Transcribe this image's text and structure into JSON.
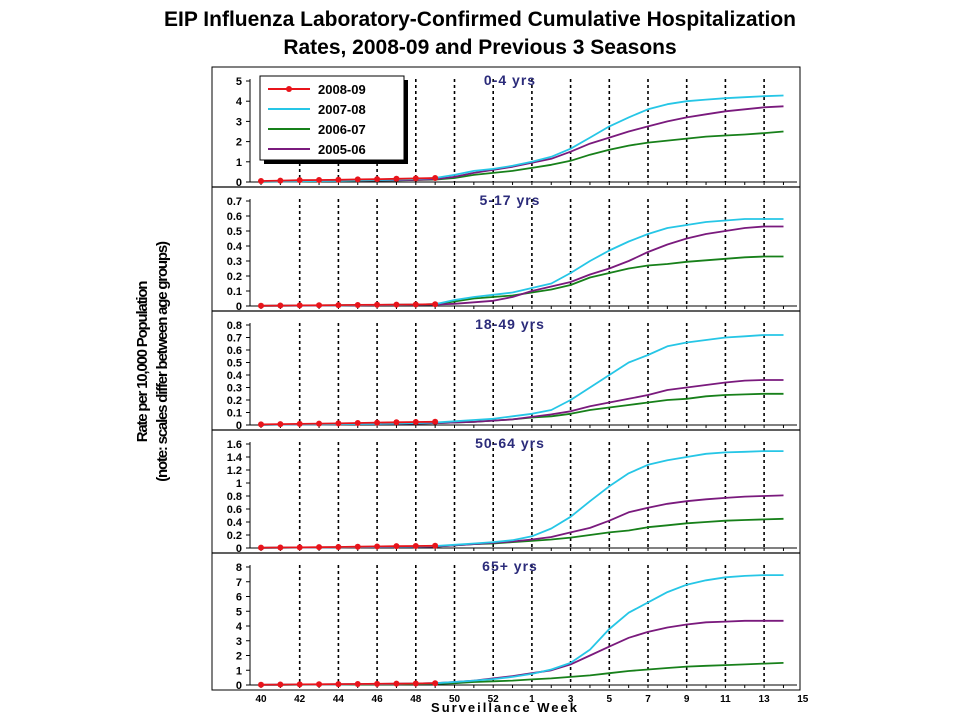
{
  "title_line1": "EIP Influenza Laboratory-Confirmed Cumulative Hospitalization",
  "title_line2": "Rates, 2008-09 and Previous 3 Seasons",
  "ylabel_line1": "Rate per 10,000 Population",
  "ylabel_line2": "(note: scales differ between age groups)",
  "xlabel": "Surveillance Week",
  "chart_data": {
    "type": "line",
    "x_ticks": [
      "40",
      "42",
      "44",
      "46",
      "48",
      "50",
      "52",
      "1",
      "3",
      "5",
      "7",
      "9",
      "11",
      "13",
      "15"
    ],
    "legend_position": "top-left of first panel",
    "series_styles": [
      {
        "name": "2008-09",
        "color": "#e8141b",
        "markers": true
      },
      {
        "name": "2007-08",
        "color": "#26c6e6",
        "markers": false
      },
      {
        "name": "2006-07",
        "color": "#17801a",
        "markers": false
      },
      {
        "name": "2005-06",
        "color": "#7a1a7d",
        "markers": false
      }
    ],
    "panels": [
      {
        "label": "0-4 yrs",
        "ylim": [
          0,
          5
        ],
        "yticks": [
          "0",
          "1",
          "2",
          "3",
          "4",
          "5"
        ],
        "series": [
          {
            "name": "2008-09",
            "values": [
              0.05,
              0.07,
              0.09,
              0.1,
              0.11,
              0.13,
              0.14,
              0.16,
              0.18,
              0.2
            ]
          },
          {
            "name": "2007-08",
            "values": [
              0.02,
              0.03,
              0.04,
              0.05,
              0.06,
              0.08,
              0.1,
              0.12,
              0.15,
              0.2,
              0.35,
              0.55,
              0.65,
              0.8,
              1.0,
              1.25,
              1.65,
              2.2,
              2.75,
              3.2,
              3.6,
              3.85,
              4.0,
              4.08,
              4.15,
              4.2,
              4.25,
              4.28
            ]
          },
          {
            "name": "2006-07",
            "values": [
              0.01,
              0.02,
              0.03,
              0.04,
              0.05,
              0.06,
              0.07,
              0.08,
              0.1,
              0.12,
              0.2,
              0.35,
              0.45,
              0.55,
              0.7,
              0.85,
              1.05,
              1.35,
              1.6,
              1.8,
              1.95,
              2.05,
              2.15,
              2.25,
              2.3,
              2.35,
              2.42,
              2.5
            ]
          },
          {
            "name": "2005-06",
            "values": [
              0.02,
              0.03,
              0.04,
              0.05,
              0.06,
              0.07,
              0.08,
              0.09,
              0.11,
              0.14,
              0.25,
              0.45,
              0.6,
              0.75,
              0.95,
              1.15,
              1.5,
              1.9,
              2.2,
              2.5,
              2.75,
              3.0,
              3.2,
              3.35,
              3.5,
              3.6,
              3.7,
              3.75
            ]
          }
        ]
      },
      {
        "label": "5-17 yrs",
        "ylim": [
          0,
          0.7
        ],
        "yticks": [
          "0",
          "0.1",
          "0.2",
          "0.3",
          "0.4",
          "0.5",
          "0.6",
          "0.7"
        ],
        "series": [
          {
            "name": "2008-09",
            "values": [
              0.002,
              0.003,
              0.004,
              0.005,
              0.006,
              0.007,
              0.008,
              0.009,
              0.01,
              0.012
            ]
          },
          {
            "name": "2007-08",
            "values": [
              0.001,
              0.002,
              0.003,
              0.004,
              0.005,
              0.006,
              0.007,
              0.008,
              0.009,
              0.012,
              0.04,
              0.06,
              0.075,
              0.09,
              0.12,
              0.15,
              0.22,
              0.3,
              0.37,
              0.43,
              0.48,
              0.52,
              0.54,
              0.56,
              0.57,
              0.58,
              0.58,
              0.58
            ]
          },
          {
            "name": "2006-07",
            "values": [
              0.001,
              0.002,
              0.003,
              0.004,
              0.005,
              0.006,
              0.007,
              0.008,
              0.009,
              0.012,
              0.03,
              0.05,
              0.06,
              0.07,
              0.09,
              0.11,
              0.14,
              0.19,
              0.22,
              0.25,
              0.27,
              0.28,
              0.295,
              0.305,
              0.315,
              0.325,
              0.33,
              0.33
            ]
          },
          {
            "name": "2005-06",
            "values": [
              0.001,
              0.002,
              0.002,
              0.003,
              0.004,
              0.005,
              0.006,
              0.007,
              0.008,
              0.01,
              0.015,
              0.025,
              0.035,
              0.06,
              0.1,
              0.13,
              0.16,
              0.21,
              0.25,
              0.3,
              0.36,
              0.41,
              0.45,
              0.48,
              0.5,
              0.52,
              0.53,
              0.53
            ]
          }
        ]
      },
      {
        "label": "18-49 yrs",
        "ylim": [
          0,
          0.8
        ],
        "yticks": [
          "0",
          "0.1",
          "0.2",
          "0.3",
          "0.4",
          "0.5",
          "0.6",
          "0.7",
          "0.8"
        ],
        "series": [
          {
            "name": "2008-09",
            "values": [
              0.005,
              0.007,
              0.009,
              0.011,
              0.013,
              0.016,
              0.019,
              0.022,
              0.024,
              0.026
            ]
          },
          {
            "name": "2007-08",
            "values": [
              0.003,
              0.004,
              0.005,
              0.006,
              0.007,
              0.008,
              0.01,
              0.012,
              0.015,
              0.02,
              0.03,
              0.04,
              0.05,
              0.07,
              0.09,
              0.12,
              0.2,
              0.3,
              0.4,
              0.5,
              0.56,
              0.63,
              0.66,
              0.68,
              0.7,
              0.71,
              0.72,
              0.72
            ]
          },
          {
            "name": "2006-07",
            "values": [
              0.002,
              0.003,
              0.004,
              0.005,
              0.006,
              0.007,
              0.008,
              0.01,
              0.012,
              0.015,
              0.02,
              0.025,
              0.035,
              0.045,
              0.06,
              0.07,
              0.09,
              0.12,
              0.14,
              0.16,
              0.18,
              0.2,
              0.21,
              0.23,
              0.24,
              0.245,
              0.25,
              0.25
            ]
          },
          {
            "name": "2005-06",
            "values": [
              0.002,
              0.003,
              0.004,
              0.005,
              0.006,
              0.007,
              0.008,
              0.01,
              0.012,
              0.015,
              0.02,
              0.025,
              0.035,
              0.045,
              0.065,
              0.085,
              0.11,
              0.15,
              0.18,
              0.21,
              0.24,
              0.28,
              0.3,
              0.32,
              0.34,
              0.355,
              0.36,
              0.36
            ]
          }
        ]
      },
      {
        "label": "50-64 yrs",
        "ylim": [
          0,
          1.6
        ],
        "yticks": [
          "0",
          "0.2",
          "0.4",
          "0.6",
          "0.8",
          "1",
          "1.2",
          "1.4",
          "1.6"
        ],
        "series": [
          {
            "name": "2008-09",
            "values": [
              0.005,
              0.007,
              0.01,
              0.013,
              0.016,
              0.02,
              0.024,
              0.028,
              0.031,
              0.034
            ]
          },
          {
            "name": "2007-08",
            "values": [
              0.003,
              0.005,
              0.007,
              0.01,
              0.013,
              0.016,
              0.019,
              0.022,
              0.026,
              0.03,
              0.05,
              0.07,
              0.09,
              0.12,
              0.18,
              0.3,
              0.48,
              0.72,
              0.95,
              1.15,
              1.28,
              1.35,
              1.4,
              1.45,
              1.47,
              1.48,
              1.49,
              1.49
            ]
          },
          {
            "name": "2006-07",
            "values": [
              0.002,
              0.004,
              0.006,
              0.008,
              0.01,
              0.012,
              0.014,
              0.016,
              0.019,
              0.022,
              0.04,
              0.06,
              0.07,
              0.09,
              0.11,
              0.13,
              0.16,
              0.2,
              0.24,
              0.27,
              0.32,
              0.35,
              0.38,
              0.4,
              0.42,
              0.43,
              0.44,
              0.45
            ]
          },
          {
            "name": "2005-06",
            "values": [
              0.002,
              0.004,
              0.006,
              0.008,
              0.01,
              0.012,
              0.014,
              0.016,
              0.019,
              0.022,
              0.04,
              0.06,
              0.08,
              0.1,
              0.13,
              0.17,
              0.24,
              0.31,
              0.42,
              0.55,
              0.62,
              0.68,
              0.72,
              0.75,
              0.77,
              0.79,
              0.8,
              0.81
            ]
          }
        ]
      },
      {
        "label": "65+ yrs",
        "ylim": [
          0,
          8
        ],
        "yticks": [
          "0",
          "1",
          "2",
          "3",
          "4",
          "5",
          "6",
          "7",
          "8"
        ],
        "series": [
          {
            "name": "2008-09",
            "values": [
              0.02,
              0.03,
              0.04,
              0.05,
              0.06,
              0.07,
              0.08,
              0.09,
              0.1,
              0.12
            ]
          },
          {
            "name": "2007-08",
            "values": [
              0.01,
              0.02,
              0.03,
              0.04,
              0.05,
              0.06,
              0.07,
              0.08,
              0.1,
              0.12,
              0.2,
              0.3,
              0.4,
              0.55,
              0.75,
              1.05,
              1.5,
              2.4,
              3.8,
              4.9,
              5.6,
              6.3,
              6.8,
              7.1,
              7.3,
              7.4,
              7.45,
              7.45
            ]
          },
          {
            "name": "2006-07",
            "values": [
              0.01,
              0.015,
              0.02,
              0.025,
              0.03,
              0.035,
              0.04,
              0.05,
              0.06,
              0.08,
              0.12,
              0.2,
              0.25,
              0.3,
              0.38,
              0.45,
              0.55,
              0.65,
              0.8,
              0.95,
              1.05,
              1.15,
              1.25,
              1.3,
              1.35,
              1.4,
              1.45,
              1.5
            ]
          },
          {
            "name": "2005-06",
            "values": [
              0.01,
              0.02,
              0.03,
              0.04,
              0.05,
              0.06,
              0.07,
              0.08,
              0.1,
              0.12,
              0.2,
              0.3,
              0.45,
              0.6,
              0.8,
              1.0,
              1.4,
              2.0,
              2.6,
              3.2,
              3.6,
              3.9,
              4.1,
              4.25,
              4.3,
              4.35,
              4.35,
              4.35
            ]
          }
        ]
      }
    ]
  }
}
